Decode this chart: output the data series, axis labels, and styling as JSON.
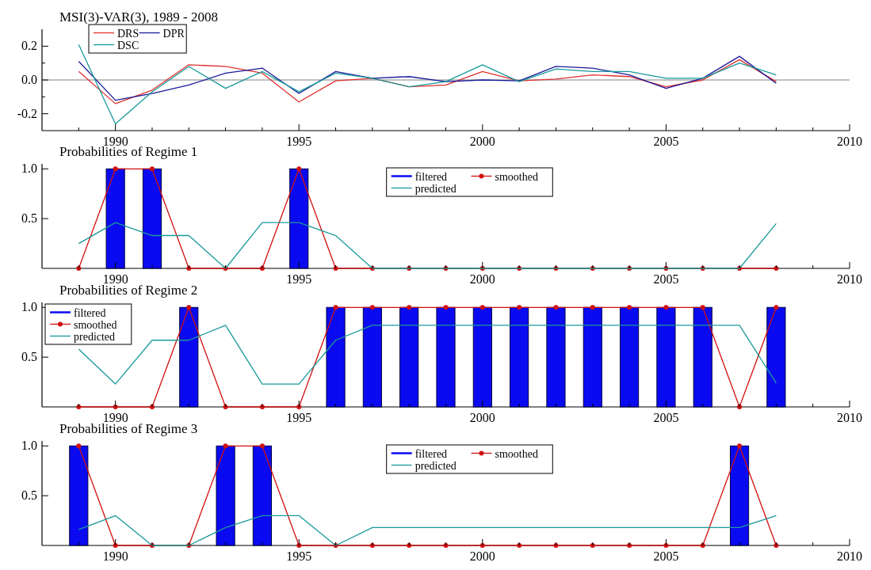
{
  "chart_data": [
    {
      "type": "line",
      "title": "MSI(3)-VAR(3), 1989 - 2008",
      "x": [
        1989,
        1990,
        1991,
        1992,
        1993,
        1994,
        1995,
        1996,
        1997,
        1998,
        1999,
        2000,
        2001,
        2002,
        2003,
        2004,
        2005,
        2006,
        2007,
        2008
      ],
      "series": [
        {
          "name": "DRS",
          "color": "#e03030",
          "values": [
            0.05,
            -0.14,
            -0.06,
            0.09,
            0.08,
            0.04,
            -0.13,
            -0.005,
            0.01,
            -0.04,
            -0.03,
            0.05,
            -0.005,
            0.005,
            0.03,
            0.02,
            -0.04,
            0.0,
            0.12,
            -0.01
          ]
        },
        {
          "name": "DPR",
          "color": "#1a1a9a",
          "values": [
            0.11,
            -0.12,
            -0.08,
            -0.03,
            0.04,
            0.07,
            -0.08,
            0.05,
            0.01,
            0.02,
            -0.01,
            0.0,
            -0.005,
            0.08,
            0.07,
            0.03,
            -0.05,
            0.01,
            0.14,
            -0.02
          ]
        },
        {
          "name": "DSC",
          "color": "#1a9a9a",
          "values": [
            0.21,
            -0.26,
            -0.07,
            0.08,
            -0.05,
            0.05,
            -0.07,
            0.04,
            0.01,
            -0.04,
            -0.01,
            0.09,
            -0.01,
            0.065,
            0.05,
            0.05,
            0.01,
            0.01,
            0.1,
            0.03
          ]
        }
      ],
      "xlim": [
        1988,
        2010
      ],
      "xticks": [
        {
          "value": 1989,
          "label": null
        },
        1990,
        {
          "value": 1991,
          "label": null
        },
        {
          "value": 1992,
          "label": null
        },
        {
          "value": 1993,
          "label": null
        },
        {
          "value": 1994,
          "label": null
        },
        1995,
        {
          "value": 1996,
          "label": null
        },
        {
          "value": 1997,
          "label": null
        },
        {
          "value": 1998,
          "label": null
        },
        {
          "value": 1999,
          "label": null
        },
        2000,
        {
          "value": 2001,
          "label": null
        },
        {
          "value": 2002,
          "label": null
        },
        {
          "value": 2003,
          "label": null
        },
        {
          "value": 2004,
          "label": null
        },
        2005,
        {
          "value": 2006,
          "label": null
        },
        {
          "value": 2007,
          "label": null
        },
        {
          "value": 2008,
          "label": null
        },
        {
          "value": 2009,
          "label": null
        },
        2010
      ],
      "ylim": [
        -0.3,
        0.3
      ],
      "yticks": [
        -0.2,
        {
          "value": -0.1,
          "label": null
        },
        {
          "value": 0,
          "label": "0.0"
        },
        {
          "value": 0.1,
          "label": null
        },
        0.2
      ],
      "ref_lines": [
        {
          "axis": "y",
          "value": 0,
          "color": "#808080"
        }
      ],
      "legend": "top left",
      "marker": "none",
      "line_style": "solid"
    },
    {
      "type": "bar",
      "title": "Probabilities of Regime 1",
      "x": [
        1989,
        1990,
        1991,
        1992,
        1993,
        1994,
        1995,
        1996,
        1997,
        1998,
        1999,
        2000,
        2001,
        2002,
        2003,
        2004,
        2005,
        2006,
        2007,
        2008
      ],
      "series": [
        {
          "name": "filtered",
          "color": "#0a0af0",
          "values": [
            0,
            1,
            1,
            0,
            0,
            0,
            1,
            0,
            0,
            0,
            0,
            0,
            0,
            0,
            0,
            0,
            0,
            0,
            0,
            0
          ]
        },
        {
          "name": "smoothed",
          "type": "line",
          "marker": "circle",
          "color": "#d01010",
          "values": [
            0,
            1,
            1,
            0,
            0,
            0,
            1,
            0,
            0,
            0,
            0,
            0,
            0,
            0,
            0,
            0,
            0,
            0,
            0,
            0
          ]
        },
        {
          "name": "predicted",
          "type": "line",
          "marker": "none",
          "color": "#1a9a9a",
          "values": [
            0.25,
            0.46,
            0.33,
            0.33,
            0,
            0.46,
            0.46,
            0.33,
            0,
            0,
            0,
            0,
            0,
            0,
            0,
            0,
            0,
            0,
            0,
            0.45
          ]
        }
      ],
      "xlim": [
        1988,
        2010
      ],
      "xticks": [
        {
          "value": 1989,
          "label": null
        },
        1990,
        {
          "value": 1991,
          "label": null
        },
        {
          "value": 1992,
          "label": null
        },
        {
          "value": 1993,
          "label": null
        },
        {
          "value": 1994,
          "label": null
        },
        1995,
        {
          "value": 1996,
          "label": null
        },
        {
          "value": 1997,
          "label": null
        },
        {
          "value": 1998,
          "label": null
        },
        {
          "value": 1999,
          "label": null
        },
        2000,
        {
          "value": 2001,
          "label": null
        },
        {
          "value": 2002,
          "label": null
        },
        {
          "value": 2003,
          "label": null
        },
        {
          "value": 2004,
          "label": null
        },
        2005,
        {
          "value": 2006,
          "label": null
        },
        {
          "value": 2007,
          "label": null
        },
        {
          "value": 2008,
          "label": null
        },
        {
          "value": 2009,
          "label": null
        },
        2010
      ],
      "ylim": [
        0,
        1.05
      ],
      "yticks": [
        0.5,
        {
          "value": 1,
          "label": "1.0"
        }
      ],
      "legend": "top",
      "line_style": "solid"
    },
    {
      "type": "bar",
      "title": "Probabilities of Regime 2",
      "x": [
        1989,
        1990,
        1991,
        1992,
        1993,
        1994,
        1995,
        1996,
        1997,
        1998,
        1999,
        2000,
        2001,
        2002,
        2003,
        2004,
        2005,
        2006,
        2007,
        2008
      ],
      "series": [
        {
          "name": "filtered",
          "color": "#0a0af0",
          "values": [
            0,
            0,
            0,
            1,
            0,
            0,
            0,
            1,
            1,
            1,
            1,
            1,
            1,
            1,
            1,
            1,
            1,
            1,
            0,
            1
          ]
        },
        {
          "name": "smoothed",
          "type": "line",
          "marker": "circle",
          "color": "#d01010",
          "values": [
            0,
            0,
            0,
            1,
            0,
            0,
            0,
            1,
            1,
            1,
            1,
            1,
            1,
            1,
            1,
            1,
            1,
            1,
            0,
            1
          ]
        },
        {
          "name": "predicted",
          "type": "line",
          "marker": "none",
          "color": "#1a9a9a",
          "values": [
            0.58,
            0.23,
            0.67,
            0.67,
            0.82,
            0.23,
            0.23,
            0.67,
            0.82,
            0.82,
            0.82,
            0.82,
            0.82,
            0.82,
            0.82,
            0.82,
            0.82,
            0.82,
            0.82,
            0.24
          ]
        }
      ],
      "xlim": [
        1988,
        2010
      ],
      "xticks": [
        {
          "value": 1989,
          "label": null
        },
        1990,
        {
          "value": 1991,
          "label": null
        },
        {
          "value": 1992,
          "label": null
        },
        {
          "value": 1993,
          "label": null
        },
        {
          "value": 1994,
          "label": null
        },
        1995,
        {
          "value": 1996,
          "label": null
        },
        {
          "value": 1997,
          "label": null
        },
        {
          "value": 1998,
          "label": null
        },
        {
          "value": 1999,
          "label": null
        },
        2000,
        {
          "value": 2001,
          "label": null
        },
        {
          "value": 2002,
          "label": null
        },
        {
          "value": 2003,
          "label": null
        },
        {
          "value": 2004,
          "label": null
        },
        2005,
        {
          "value": 2006,
          "label": null
        },
        {
          "value": 2007,
          "label": null
        },
        {
          "value": 2008,
          "label": null
        },
        {
          "value": 2009,
          "label": null
        },
        2010
      ],
      "ylim": [
        0,
        1.05
      ],
      "yticks": [
        0.5,
        {
          "value": 1,
          "label": "1.0"
        }
      ],
      "legend": "top left",
      "line_style": "solid"
    },
    {
      "type": "bar",
      "title": "Probabilities of Regime 3",
      "x": [
        1989,
        1990,
        1991,
        1992,
        1993,
        1994,
        1995,
        1996,
        1997,
        1998,
        1999,
        2000,
        2001,
        2002,
        2003,
        2004,
        2005,
        2006,
        2007,
        2008
      ],
      "series": [
        {
          "name": "filtered",
          "color": "#0a0af0",
          "values": [
            1,
            0,
            0,
            0,
            1,
            1,
            0,
            0,
            0,
            0,
            0,
            0,
            0,
            0,
            0,
            0,
            0,
            0,
            1,
            0
          ]
        },
        {
          "name": "smoothed",
          "type": "line",
          "marker": "circle",
          "color": "#d01010",
          "values": [
            1,
            0,
            0,
            0,
            1,
            1,
            0,
            0,
            0,
            0,
            0,
            0,
            0,
            0,
            0,
            0,
            0,
            0,
            1,
            0
          ]
        },
        {
          "name": "predicted",
          "type": "line",
          "marker": "none",
          "color": "#1a9a9a",
          "values": [
            0.16,
            0.3,
            0,
            0,
            0.18,
            0.3,
            0.3,
            0,
            0.18,
            0.18,
            0.18,
            0.18,
            0.18,
            0.18,
            0.18,
            0.18,
            0.18,
            0.18,
            0.18,
            0.3
          ]
        }
      ],
      "xlim": [
        1988,
        2010
      ],
      "xticks": [
        {
          "value": 1989,
          "label": null
        },
        1990,
        {
          "value": 1991,
          "label": null
        },
        {
          "value": 1992,
          "label": null
        },
        {
          "value": 1993,
          "label": null
        },
        {
          "value": 1994,
          "label": null
        },
        1995,
        {
          "value": 1996,
          "label": null
        },
        {
          "value": 1997,
          "label": null
        },
        {
          "value": 1998,
          "label": null
        },
        {
          "value": 1999,
          "label": null
        },
        2000,
        {
          "value": 2001,
          "label": null
        },
        {
          "value": 2002,
          "label": null
        },
        {
          "value": 2003,
          "label": null
        },
        {
          "value": 2004,
          "label": null
        },
        2005,
        {
          "value": 2006,
          "label": null
        },
        {
          "value": 2007,
          "label": null
        },
        {
          "value": 2008,
          "label": null
        },
        {
          "value": 2009,
          "label": null
        },
        2010
      ],
      "ylim": [
        0,
        1.05
      ],
      "yticks": [
        0.5,
        {
          "value": 1,
          "label": "1.0"
        }
      ],
      "legend": "top",
      "line_style": "solid"
    }
  ]
}
